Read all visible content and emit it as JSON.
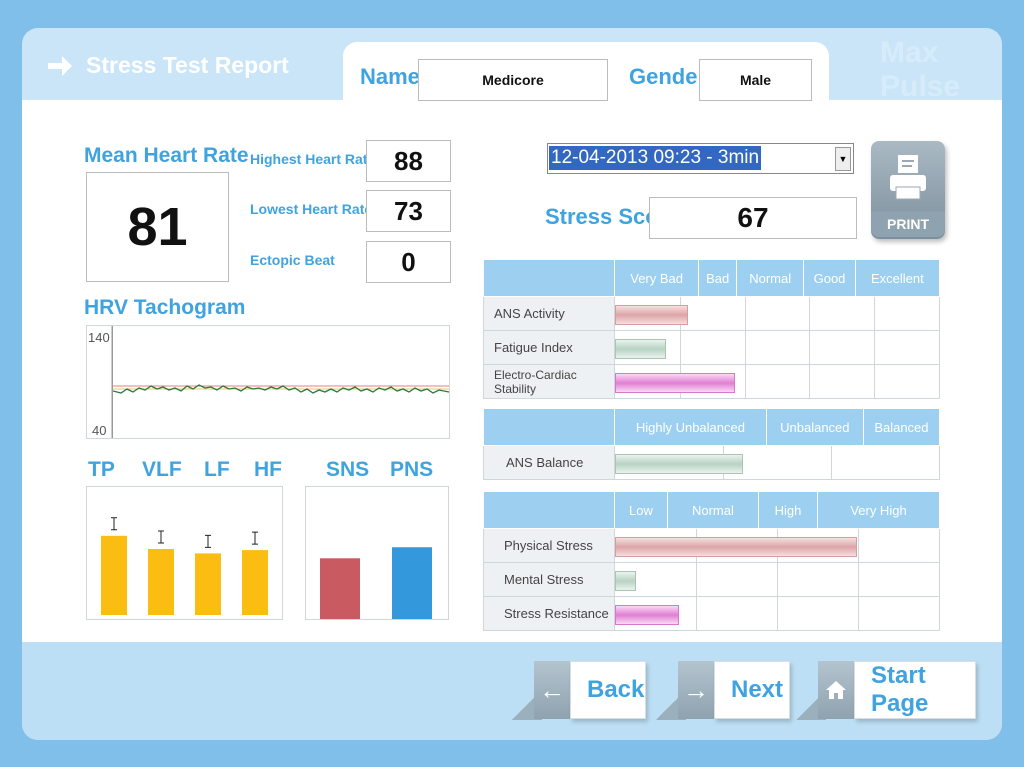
{
  "header": {
    "title": "Stress Test Report",
    "brand": "Max Pulse",
    "name_label": "Name",
    "name_value": "Medicore",
    "gender_label": "Gender",
    "gender_value": "Male"
  },
  "heart": {
    "mean_label": "Mean Heart Rate",
    "mean_value": "81",
    "highest_label": "Highest Heart Rate",
    "highest_value": "88",
    "lowest_label": "Lowest Heart Rate",
    "lowest_value": "73",
    "ectopic_label": "Ectopic Beat",
    "ectopic_value": "0"
  },
  "tachogram": {
    "title": "HRV Tachogram",
    "y_max": "140",
    "y_min": "40"
  },
  "spectrum": {
    "labels": [
      "TP",
      "VLF",
      "LF",
      "HF"
    ],
    "values": [
      0.72,
      0.6,
      0.56,
      0.59
    ]
  },
  "autonomic": {
    "labels": [
      "SNS",
      "PNS"
    ],
    "values": [
      0.66,
      0.78
    ],
    "colors": [
      "#c95a62",
      "#3398dc"
    ]
  },
  "session": {
    "selected": "12-04-2013 09:23 - 3min"
  },
  "stress_score": {
    "label": "Stress Score",
    "value": "67"
  },
  "print": {
    "label": "PRINT"
  },
  "table1": {
    "headers": [
      "Very Bad",
      "Bad",
      "Normal",
      "Good",
      "Excellent"
    ],
    "rows": [
      {
        "label": "ANS Activity",
        "level": 0.22
      },
      {
        "label": "Fatigue Index",
        "level": 0.15
      },
      {
        "label": "Electro-Cardiac Stability",
        "level": 0.365
      }
    ]
  },
  "table2": {
    "headers": [
      "Highly Unbalanced",
      "Unbalanced",
      "Balanced"
    ],
    "rows": [
      {
        "label": "ANS Balance",
        "level": 0.39
      }
    ]
  },
  "table3": {
    "headers": [
      "Low",
      "Normal",
      "High",
      "Very High"
    ],
    "rows": [
      {
        "label": "Physical Stress",
        "level": 0.74
      },
      {
        "label": "Mental Stress",
        "level": 0.06
      },
      {
        "label": "Stress Resistance",
        "level": 0.19
      }
    ]
  },
  "nav": {
    "back": "Back",
    "next": "Next",
    "start": "Start Page"
  },
  "colors": {
    "accent": "#3fa3e0",
    "bar_yellow": "#fbbd12"
  }
}
